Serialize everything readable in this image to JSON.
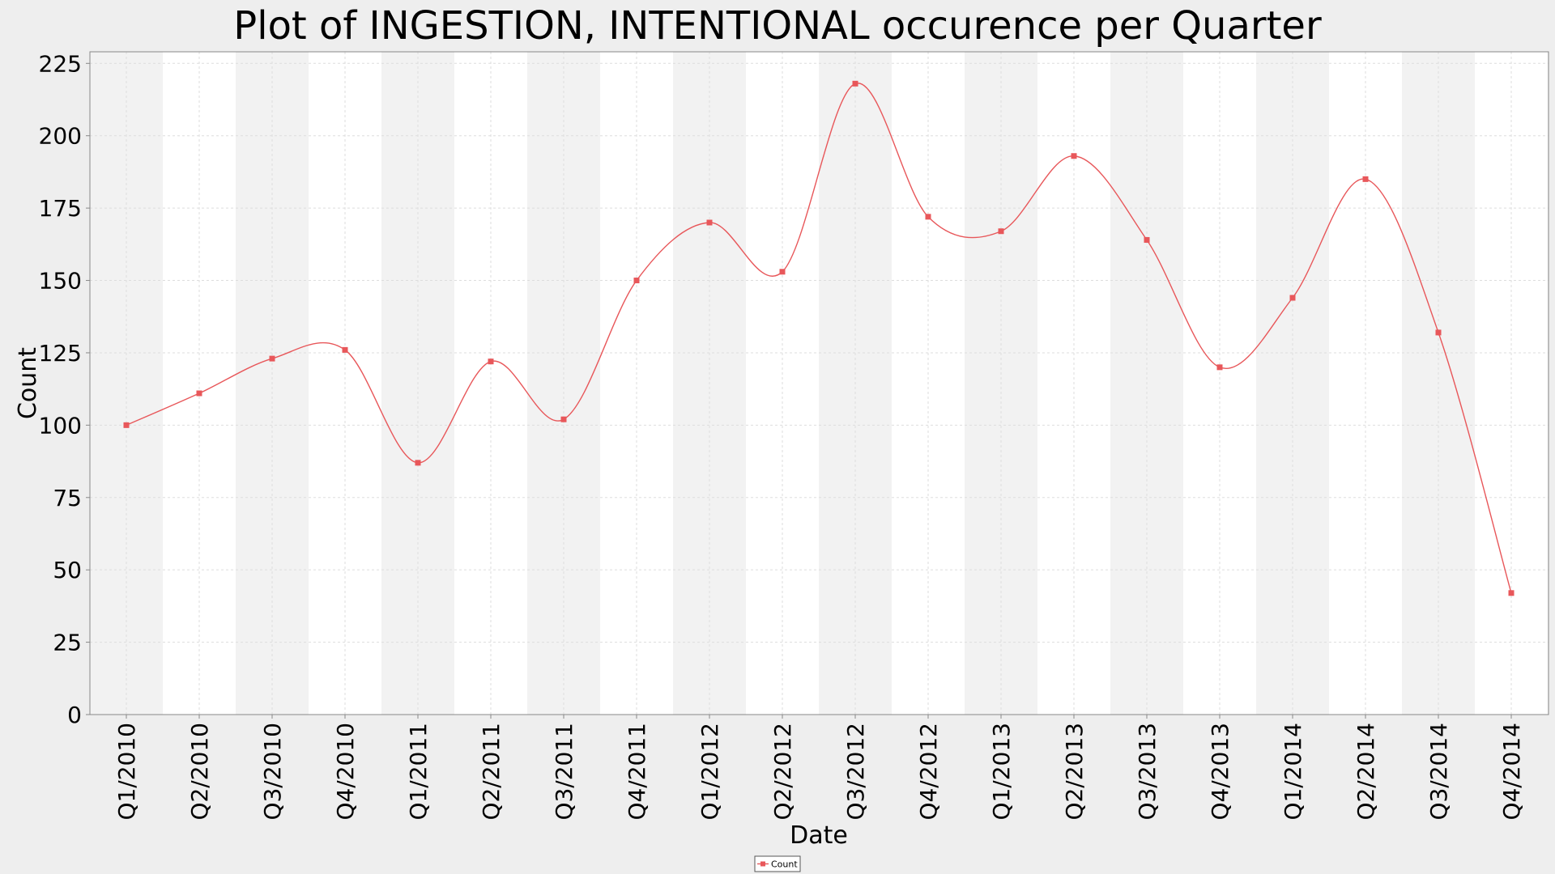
{
  "chart_data": {
    "type": "line",
    "title": "Plot of INGESTION, INTENTIONAL occurence per Quarter",
    "xlabel": "Date",
    "ylabel": "Count",
    "categories": [
      "Q1/2010",
      "Q2/2010",
      "Q3/2010",
      "Q4/2010",
      "Q1/2011",
      "Q2/2011",
      "Q3/2011",
      "Q4/2011",
      "Q1/2012",
      "Q2/2012",
      "Q3/2012",
      "Q4/2012",
      "Q1/2013",
      "Q2/2013",
      "Q3/2013",
      "Q4/2013",
      "Q1/2014",
      "Q2/2014",
      "Q3/2014",
      "Q4/2014"
    ],
    "series": [
      {
        "name": "Count",
        "values": [
          100,
          111,
          123,
          126,
          87,
          122,
          102,
          150,
          170,
          153,
          218,
          172,
          167,
          193,
          164,
          120,
          144,
          185,
          132,
          42
        ]
      }
    ],
    "ylim": [
      0,
      229
    ],
    "yticks": [
      0,
      25,
      50,
      75,
      100,
      125,
      150,
      175,
      200,
      225
    ],
    "grid": true,
    "legend_position": "bottom-center",
    "colors": {
      "series": "#e8575a",
      "band_shaded": "#f2f2f2",
      "band_plain": "#ffffff",
      "page_background": "#eeeeee",
      "grid": "#dddddd"
    }
  }
}
